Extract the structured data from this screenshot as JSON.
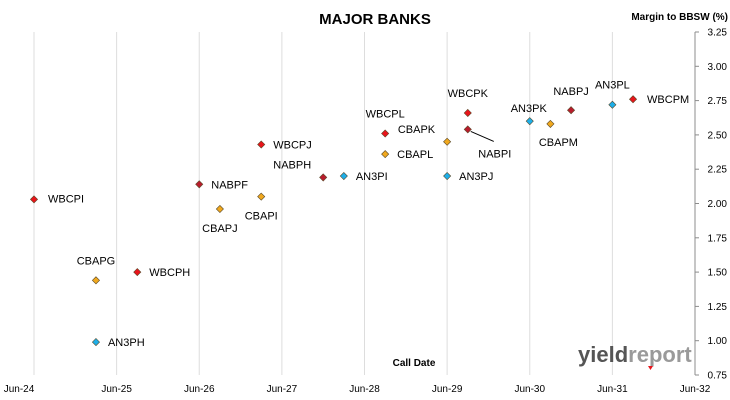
{
  "chart_data": {
    "type": "scatter",
    "title": "MAJOR BANKS",
    "ylabel": "Margin to BBSW (%)",
    "xlabel": "Call Date",
    "ylim": [
      0.75,
      3.25
    ],
    "yticks": [
      "0.75",
      "1.00",
      "1.25",
      "1.50",
      "1.75",
      "2.00",
      "2.25",
      "2.50",
      "2.75",
      "3.00",
      "3.25"
    ],
    "xlim": [
      "2024-06",
      "2032-06"
    ],
    "xticks": [
      "Jun-24",
      "Jun-25",
      "Jun-26",
      "Jun-27",
      "Jun-28",
      "Jun-29",
      "Jun-30",
      "Jun-31",
      "Jun-32"
    ],
    "grid": "vertical",
    "series": [
      {
        "name": "WBC",
        "color": "#e8141b",
        "points": [
          {
            "label": "WBCPI",
            "x": "2024-06",
            "y": 2.03
          },
          {
            "label": "WBCPH",
            "x": "2025-09",
            "y": 1.5
          },
          {
            "label": "WBCPJ",
            "x": "2027-03",
            "y": 2.43
          },
          {
            "label": "WBCPL",
            "x": "2028-09",
            "y": 2.51
          },
          {
            "label": "WBCPK",
            "x": "2029-09",
            "y": 2.66
          },
          {
            "label": "WBCPM",
            "x": "2031-09",
            "y": 2.76
          }
        ]
      },
      {
        "name": "NAB",
        "color": "#b81c2c",
        "points": [
          {
            "label": "NABPF",
            "x": "2026-06",
            "y": 2.14
          },
          {
            "label": "NABPH",
            "x": "2027-12",
            "y": 2.19
          },
          {
            "label": "NABPI",
            "x": "2029-09",
            "y": 2.54
          },
          {
            "label": "NABPJ",
            "x": "2030-12",
            "y": 2.68
          }
        ]
      },
      {
        "name": "CBA",
        "color": "#f0a81e",
        "points": [
          {
            "label": "CBAPG",
            "x": "2025-03",
            "y": 1.44
          },
          {
            "label": "CBAPJ",
            "x": "2026-09",
            "y": 1.96
          },
          {
            "label": "CBAPI",
            "x": "2027-03",
            "y": 2.05
          },
          {
            "label": "CBAPL",
            "x": "2028-09",
            "y": 2.36
          },
          {
            "label": "CBAPK",
            "x": "2029-06",
            "y": 2.45
          },
          {
            "label": "CBAPM",
            "x": "2030-09",
            "y": 2.58
          }
        ]
      },
      {
        "name": "ANZ",
        "color": "#1eaee8",
        "points": [
          {
            "label": "AN3PH",
            "x": "2025-03",
            "y": 0.99
          },
          {
            "label": "AN3PI",
            "x": "2028-03",
            "y": 2.2
          },
          {
            "label": "AN3PJ",
            "x": "2029-06",
            "y": 2.2
          },
          {
            "label": "AN3PK",
            "x": "2030-06",
            "y": 2.6
          },
          {
            "label": "AN3PL",
            "x": "2031-06",
            "y": 2.72
          }
        ]
      }
    ]
  },
  "logo": {
    "part1": "yield",
    "part2": "report"
  }
}
